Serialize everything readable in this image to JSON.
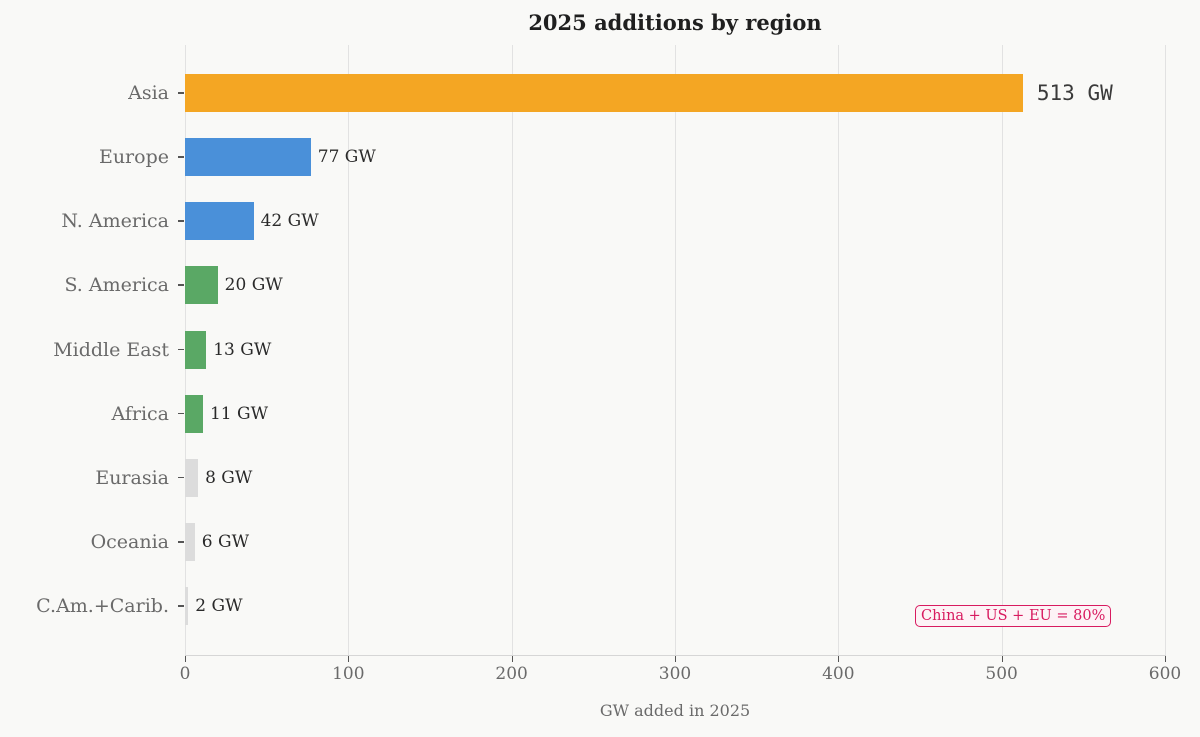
{
  "chart_data": {
    "type": "bar",
    "orientation": "horizontal",
    "title": "2025 additions by region",
    "xlabel": "GW added in 2025",
    "ylabel": "",
    "xlim": [
      0,
      600
    ],
    "xticks": [
      "0",
      "100",
      "200",
      "300",
      "400",
      "500",
      "600"
    ],
    "grid": "vertical",
    "categories": [
      "Asia",
      "Europe",
      "N. America",
      "S. America",
      "Middle East",
      "Africa",
      "Eurasia",
      "Oceania",
      "C.Am.+Carib."
    ],
    "values": [
      513,
      77,
      42,
      20,
      13,
      11,
      8,
      6,
      2
    ],
    "value_labels": [
      "513 GW",
      "77 GW",
      "42 GW",
      "20 GW",
      "13 GW",
      "11 GW",
      "8 GW",
      "6 GW",
      "2 GW"
    ],
    "bar_colors": [
      "#f4a623",
      "#4a90d9",
      "#4a90d9",
      "#5aa865",
      "#5aa865",
      "#5aa865",
      "#dcdcdc",
      "#dcdcdc",
      "#dcdcdc"
    ],
    "annotations": [
      {
        "text": "China + US + EU = 80%",
        "color": "#d81b60",
        "position": "bottom-right"
      }
    ]
  }
}
